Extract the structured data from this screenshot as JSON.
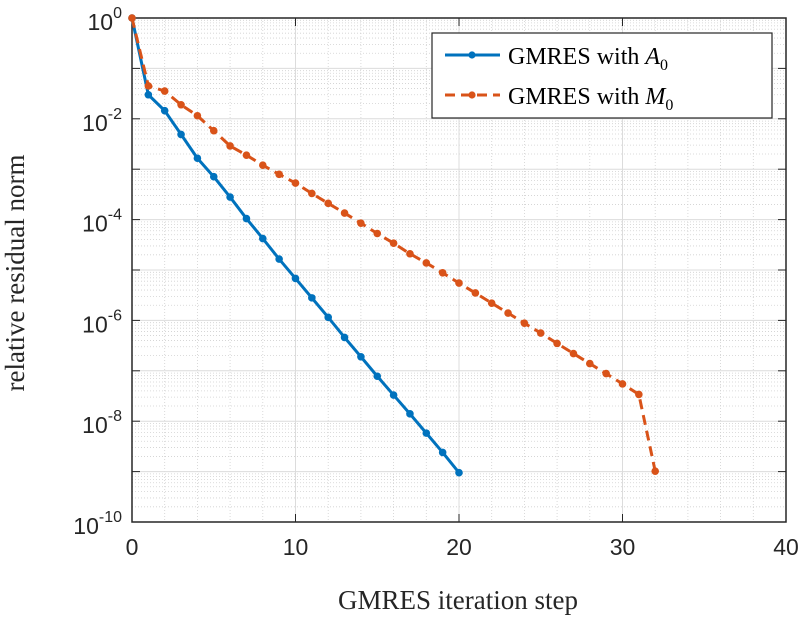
{
  "chart_data": {
    "type": "line",
    "title": "",
    "xlabel": "GMRES iteration step",
    "ylabel": "relative residual norm",
    "xlim": [
      0,
      40
    ],
    "ylim": [
      1e-10,
      1
    ],
    "yscale": "log",
    "grid": true,
    "legend_position": "top-right",
    "x_ticks": [
      "0",
      "10",
      "20",
      "30",
      "40"
    ],
    "y_ticks": [
      {
        "base": "10",
        "exp": "0",
        "value": 1
      },
      {
        "base": "10",
        "exp": "-2",
        "value": 0.01
      },
      {
        "base": "10",
        "exp": "-4",
        "value": 0.0001
      },
      {
        "base": "10",
        "exp": "-6",
        "value": 1e-06
      },
      {
        "base": "10",
        "exp": "-8",
        "value": 1e-08
      },
      {
        "base": "10",
        "exp": "-10",
        "value": 1e-10
      }
    ],
    "series": [
      {
        "name": "GMRES with A0",
        "legend_text": "GMRES with ",
        "legend_math": "A",
        "legend_sub": "0",
        "color": "#0072BD",
        "linestyle": "solid",
        "x": [
          0,
          1,
          2,
          3,
          4,
          5,
          6,
          7,
          8,
          9,
          10,
          11,
          12,
          13,
          14,
          15,
          16,
          17,
          18,
          19,
          20
        ],
        "values": [
          1,
          0.03,
          0.0145,
          0.0049,
          0.00165,
          0.00071,
          0.00028,
          0.000105,
          4.2e-05,
          1.65e-05,
          6.8e-06,
          2.8e-06,
          1.15e-06,
          4.6e-07,
          1.9e-07,
          7.8e-08,
          3.3e-08,
          1.4e-08,
          5.8e-09,
          2.4e-09,
          9.5e-10
        ]
      },
      {
        "name": "GMRES with M0",
        "legend_text": "GMRES with ",
        "legend_math": "M",
        "legend_sub": "0",
        "color": "#D95319",
        "linestyle": "dashed",
        "x": [
          0,
          1,
          2,
          3,
          4,
          5,
          6,
          7,
          8,
          9,
          10,
          11,
          12,
          13,
          14,
          15,
          16,
          17,
          18,
          19,
          20,
          21,
          22,
          23,
          24,
          25,
          26,
          27,
          28,
          29,
          30,
          31,
          32
        ],
        "values": [
          1,
          0.045,
          0.0355,
          0.019,
          0.0115,
          0.0058,
          0.0029,
          0.0019,
          0.0012,
          0.00079,
          0.00053,
          0.00033,
          0.00021,
          0.000135,
          8.5e-05,
          5.3e-05,
          3.4e-05,
          2.1e-05,
          1.38e-05,
          8.8e-06,
          5.5e-06,
          3.5e-06,
          2.2e-06,
          1.4e-06,
          8.8e-07,
          5.6e-07,
          3.5e-07,
          2.2e-07,
          1.39e-07,
          8.8e-08,
          5.5e-08,
          3.4e-08,
          1.02e-09
        ]
      }
    ]
  }
}
